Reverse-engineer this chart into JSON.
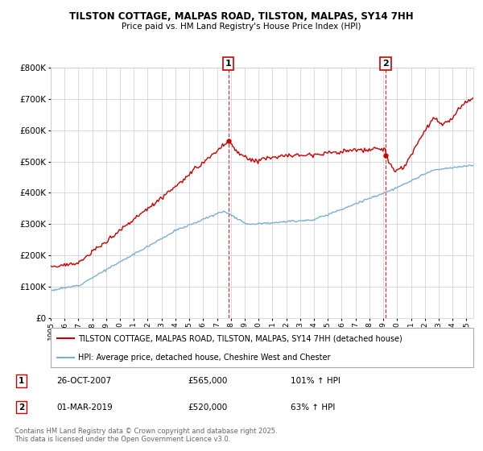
{
  "title1": "TILSTON COTTAGE, MALPAS ROAD, TILSTON, MALPAS, SY14 7HH",
  "title2": "Price paid vs. HM Land Registry's House Price Index (HPI)",
  "ylim": [
    0,
    800000
  ],
  "xlim_start": 1995.0,
  "xlim_end": 2025.5,
  "red_color": "#cc0000",
  "blue_color": "#7ab0d4",
  "transaction1_x": 2007.82,
  "transaction1_y": 565000,
  "transaction2_x": 2019.17,
  "transaction2_y": 520000,
  "legend_red": "TILSTON COTTAGE, MALPAS ROAD, TILSTON, MALPAS, SY14 7HH (detached house)",
  "legend_blue": "HPI: Average price, detached house, Cheshire West and Chester",
  "footnote": "Contains HM Land Registry data © Crown copyright and database right 2025.\nThis data is licensed under the Open Government Licence v3.0.",
  "table": [
    {
      "num": "1",
      "date": "26-OCT-2007",
      "price": "£565,000",
      "hpi": "101% ↑ HPI"
    },
    {
      "num": "2",
      "date": "01-MAR-2019",
      "price": "£520,000",
      "hpi": "63% ↑ HPI"
    }
  ]
}
